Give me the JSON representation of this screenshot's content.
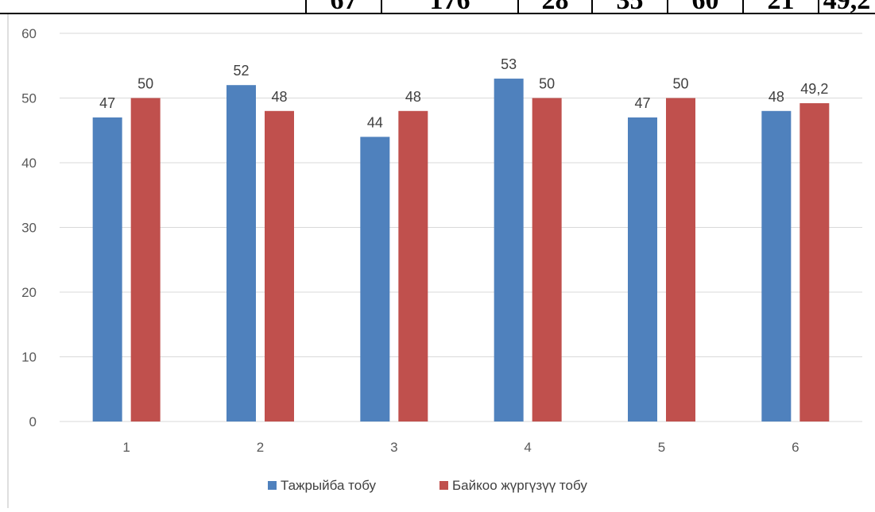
{
  "top_table_fragment": [
    "67",
    "176",
    "28",
    "35",
    "60",
    "21",
    "49,2"
  ],
  "chart_data": {
    "type": "bar",
    "categories": [
      "1",
      "2",
      "3",
      "4",
      "5",
      "6"
    ],
    "series": [
      {
        "name": "Тажрыйба тобу",
        "values": [
          47,
          52,
          44,
          53,
          47,
          48
        ],
        "labels": [
          "47",
          "52",
          "44",
          "53",
          "47",
          "48"
        ],
        "color": "#4f81bd"
      },
      {
        "name": "Байкоо жүргүзүү тобу",
        "values": [
          50,
          48,
          48,
          50,
          50,
          49.2
        ],
        "labels": [
          "50",
          "48",
          "48",
          "50",
          "50",
          "49,2"
        ],
        "color": "#c0504d"
      }
    ],
    "yticks": [
      "0",
      "10",
      "20",
      "30",
      "40",
      "50",
      "60"
    ],
    "ylim": [
      0,
      60
    ],
    "grid": true,
    "legend_position": "bottom"
  }
}
